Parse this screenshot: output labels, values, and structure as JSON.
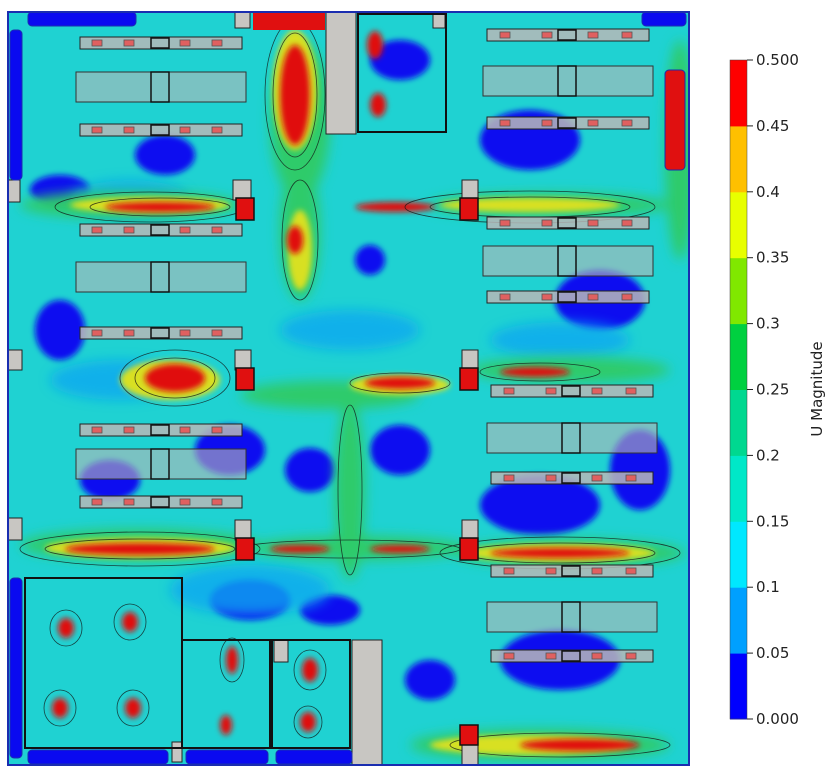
{
  "legend": {
    "title": "U Magnitude",
    "ticks": [
      "0.000",
      "0.05",
      "0.1",
      "0.15",
      "0.2",
      "0.25",
      "0.3",
      "0.35",
      "0.4",
      "0.45",
      "0.500"
    ],
    "min": 0.0,
    "max": 0.5,
    "colors": [
      "#0000ff",
      "#00a0ff",
      "#00e8ff",
      "#00e8c8",
      "#00d890",
      "#00d040",
      "#80e800",
      "#e8ff00",
      "#ffc000",
      "#ff0000"
    ]
  },
  "field": {
    "levels": [
      "#0a0af0",
      "#0a3cf8",
      "#0aa8f0",
      "#1fd2d2",
      "#22c8a0",
      "#2ecb6a",
      "#78d52a",
      "#d8e020",
      "#ffa800",
      "#e01010"
    ],
    "obstacle_color": "#c8c6c2",
    "rack_color": "#b8b8b8",
    "border_color": "#1a2db0"
  }
}
